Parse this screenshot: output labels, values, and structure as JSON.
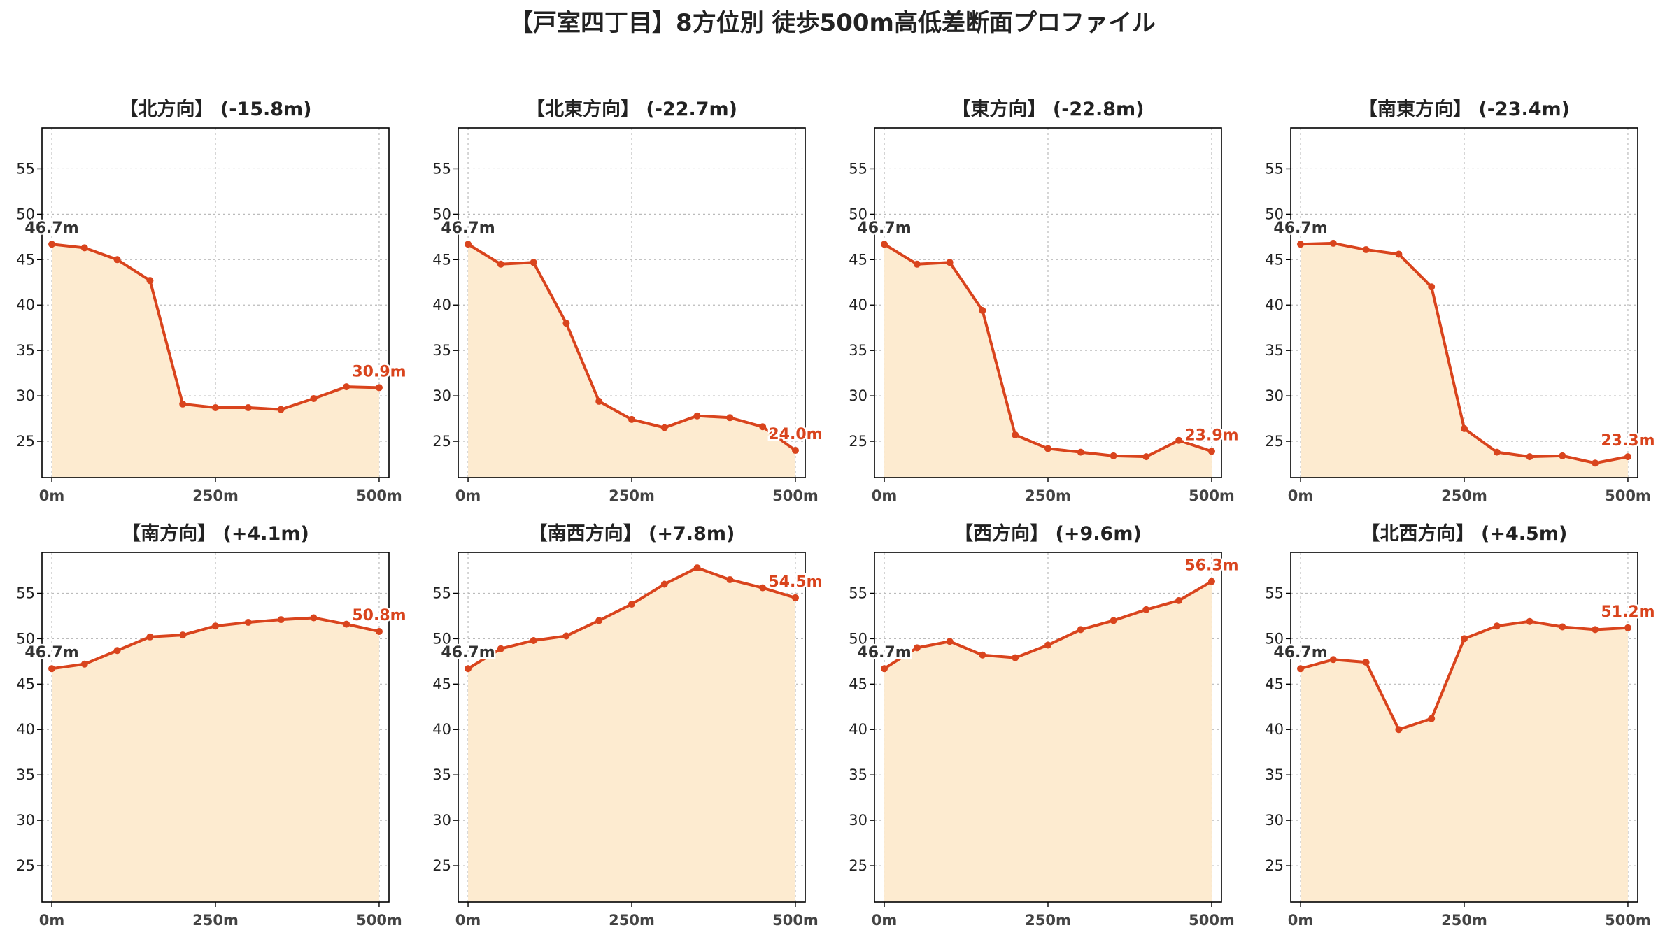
{
  "title": "【戸室四丁目】8方位別 徒歩500m高低差断面プロファイル",
  "colors": {
    "line": "#d9441d",
    "fill": "#fdebd0",
    "axis": "#000000",
    "grid": "#bbbbbb",
    "text": "#222222",
    "start_label": "#333333",
    "end_label": "#d9441d"
  },
  "chart_data": [
    {
      "type": "area",
      "title": "【北方向】 (-15.8m)",
      "x": [
        0,
        50,
        100,
        150,
        200,
        250,
        300,
        350,
        400,
        450,
        500
      ],
      "values": [
        46.7,
        46.3,
        45.0,
        42.7,
        29.1,
        28.7,
        28.7,
        28.5,
        29.7,
        31.0,
        30.9
      ],
      "start_label": "46.7m",
      "end_label": "30.9m",
      "xticks": [
        "0m",
        "250m",
        "500m"
      ],
      "xlim": [
        -15,
        515
      ],
      "ylim": [
        21,
        59.5
      ],
      "yticks": [
        25,
        30,
        35,
        40,
        45,
        50,
        55
      ],
      "grid": true
    },
    {
      "type": "area",
      "title": "【北東方向】 (-22.7m)",
      "x": [
        0,
        50,
        100,
        150,
        200,
        250,
        300,
        350,
        400,
        450,
        500
      ],
      "values": [
        46.7,
        44.5,
        44.7,
        38.0,
        29.4,
        27.4,
        26.5,
        27.8,
        27.6,
        26.6,
        24.0
      ],
      "start_label": "46.7m",
      "end_label": "24.0m",
      "xticks": [
        "0m",
        "250m",
        "500m"
      ],
      "xlim": [
        -15,
        515
      ],
      "ylim": [
        21,
        59.5
      ],
      "yticks": [
        25,
        30,
        35,
        40,
        45,
        50,
        55
      ],
      "grid": true
    },
    {
      "type": "area",
      "title": "【東方向】 (-22.8m)",
      "x": [
        0,
        50,
        100,
        150,
        200,
        250,
        300,
        350,
        400,
        450,
        500
      ],
      "values": [
        46.7,
        44.5,
        44.7,
        39.4,
        25.7,
        24.2,
        23.8,
        23.4,
        23.3,
        25.1,
        23.9
      ],
      "start_label": "46.7m",
      "end_label": "23.9m",
      "xticks": [
        "0m",
        "250m",
        "500m"
      ],
      "xlim": [
        -15,
        515
      ],
      "ylim": [
        21,
        59.5
      ],
      "yticks": [
        25,
        30,
        35,
        40,
        45,
        50,
        55
      ],
      "grid": true
    },
    {
      "type": "area",
      "title": "【南東方向】 (-23.4m)",
      "x": [
        0,
        50,
        100,
        150,
        200,
        250,
        300,
        350,
        400,
        450,
        500
      ],
      "values": [
        46.7,
        46.8,
        46.1,
        45.6,
        42.0,
        26.4,
        23.8,
        23.3,
        23.4,
        22.6,
        23.3
      ],
      "start_label": "46.7m",
      "end_label": "23.3m",
      "xticks": [
        "0m",
        "250m",
        "500m"
      ],
      "xlim": [
        -15,
        515
      ],
      "ylim": [
        21,
        59.5
      ],
      "yticks": [
        25,
        30,
        35,
        40,
        45,
        50,
        55
      ],
      "grid": true
    },
    {
      "type": "area",
      "title": "【南方向】 (+4.1m)",
      "x": [
        0,
        50,
        100,
        150,
        200,
        250,
        300,
        350,
        400,
        450,
        500
      ],
      "values": [
        46.7,
        47.2,
        48.7,
        50.2,
        50.4,
        51.4,
        51.8,
        52.1,
        52.3,
        51.6,
        50.8
      ],
      "start_label": "46.7m",
      "end_label": "50.8m",
      "xticks": [
        "0m",
        "250m",
        "500m"
      ],
      "xlim": [
        -15,
        515
      ],
      "ylim": [
        21,
        59.5
      ],
      "yticks": [
        25,
        30,
        35,
        40,
        45,
        50,
        55
      ],
      "grid": true
    },
    {
      "type": "area",
      "title": "【南西方向】 (+7.8m)",
      "x": [
        0,
        50,
        100,
        150,
        200,
        250,
        300,
        350,
        400,
        450,
        500
      ],
      "values": [
        46.7,
        48.9,
        49.8,
        50.3,
        52.0,
        53.8,
        56.0,
        57.8,
        56.5,
        55.6,
        54.5
      ],
      "start_label": "46.7m",
      "end_label": "54.5m",
      "xticks": [
        "0m",
        "250m",
        "500m"
      ],
      "xlim": [
        -15,
        515
      ],
      "ylim": [
        21,
        59.5
      ],
      "yticks": [
        25,
        30,
        35,
        40,
        45,
        50,
        55
      ],
      "grid": true
    },
    {
      "type": "area",
      "title": "【西方向】 (+9.6m)",
      "x": [
        0,
        50,
        100,
        150,
        200,
        250,
        300,
        350,
        400,
        450,
        500
      ],
      "values": [
        46.7,
        49.0,
        49.7,
        48.2,
        47.9,
        49.3,
        51.0,
        52.0,
        53.2,
        54.2,
        56.3
      ],
      "start_label": "46.7m",
      "end_label": "56.3m",
      "xticks": [
        "0m",
        "250m",
        "500m"
      ],
      "xlim": [
        -15,
        515
      ],
      "ylim": [
        21,
        59.5
      ],
      "yticks": [
        25,
        30,
        35,
        40,
        45,
        50,
        55
      ],
      "grid": true
    },
    {
      "type": "area",
      "title": "【北西方向】 (+4.5m)",
      "x": [
        0,
        50,
        100,
        150,
        200,
        250,
        300,
        350,
        400,
        450,
        500
      ],
      "values": [
        46.7,
        47.7,
        47.4,
        40.0,
        41.2,
        50.0,
        51.4,
        51.9,
        51.3,
        51.0,
        51.2
      ],
      "start_label": "46.7m",
      "end_label": "51.2m",
      "xticks": [
        "0m",
        "250m",
        "500m"
      ],
      "xlim": [
        -15,
        515
      ],
      "ylim": [
        21,
        59.5
      ],
      "yticks": [
        25,
        30,
        35,
        40,
        45,
        50,
        55
      ],
      "grid": true
    }
  ]
}
